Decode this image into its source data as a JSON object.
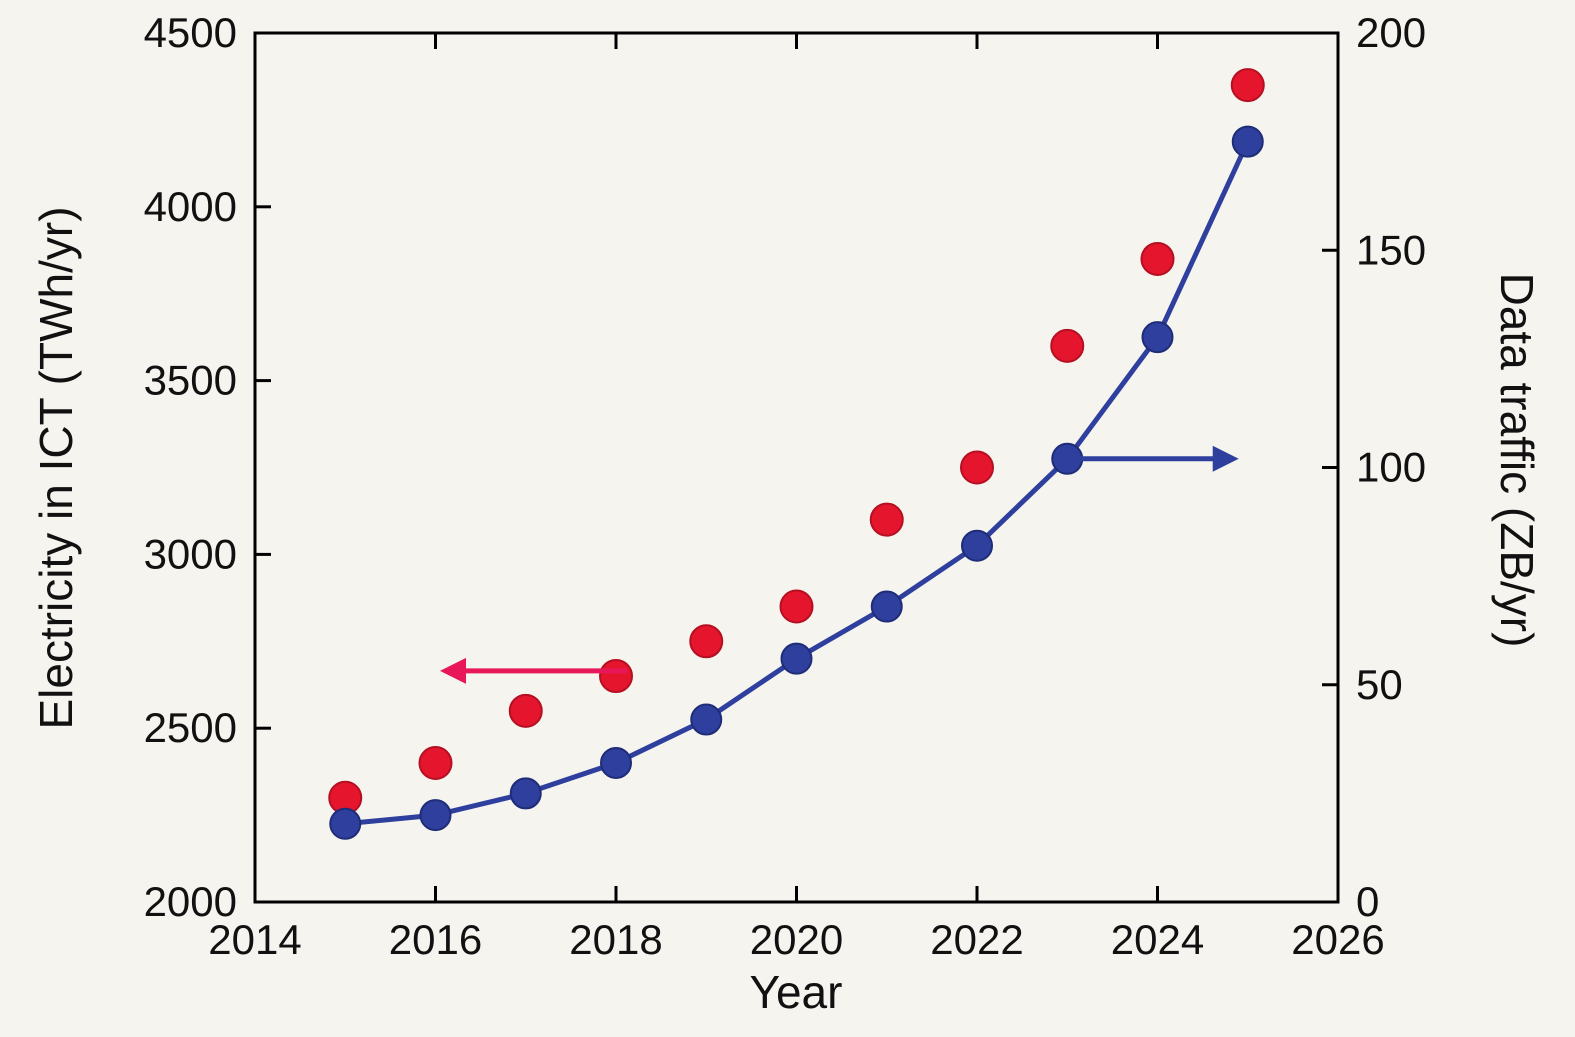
{
  "chart_data": {
    "type": "scatter",
    "title": "",
    "xlabel": "Year",
    "ylabel_left": "Electricity in ICT (TWh/yr)",
    "ylabel_right": "Data traffic (ZB/yr)",
    "xlim": [
      2014,
      2026
    ],
    "ylim_left": [
      2000,
      4500
    ],
    "ylim_right": [
      0,
      200
    ],
    "xticks": [
      2014,
      2016,
      2018,
      2020,
      2022,
      2024,
      2026
    ],
    "yticks_left": [
      2000,
      2500,
      3000,
      3500,
      4000,
      4500
    ],
    "yticks_right": [
      0,
      50,
      100,
      150,
      200
    ],
    "grid": false,
    "legend": "none",
    "x": [
      2015,
      2016,
      2017,
      2018,
      2019,
      2020,
      2021,
      2022,
      2023,
      2024,
      2025
    ],
    "series": [
      {
        "name": "Electricity in ICT",
        "axis": "left",
        "marker": "circle",
        "marker_radius": 16,
        "line": false,
        "color": "#e6152e",
        "edge_color": "#b50f22",
        "values": [
          2300,
          2400,
          2550,
          2650,
          2750,
          2850,
          3100,
          3250,
          3600,
          3850,
          4350
        ]
      },
      {
        "name": "Data traffic",
        "axis": "right",
        "marker": "circle",
        "marker_radius": 15,
        "line": true,
        "line_width": 5,
        "color": "#2e3f9e",
        "edge_color": "#1f2c77",
        "values": [
          18,
          20,
          25,
          32,
          42,
          56,
          68,
          82,
          102,
          130,
          175
        ]
      }
    ],
    "annotations": [
      {
        "name": "left-axis-arrow",
        "axis": "left",
        "color": "#e8175a",
        "x_from": 2018.1,
        "x_to": 2016.05,
        "y": 2665
      },
      {
        "name": "right-axis-arrow",
        "axis": "right",
        "color": "#2e3f9e",
        "x_from": 2023.15,
        "x_to": 2024.9,
        "y": 102
      }
    ]
  },
  "colors": {
    "background": "#f6f4ef",
    "axis": "#000000",
    "red_series": "#e6152e",
    "blue_series": "#2e3f9e"
  }
}
